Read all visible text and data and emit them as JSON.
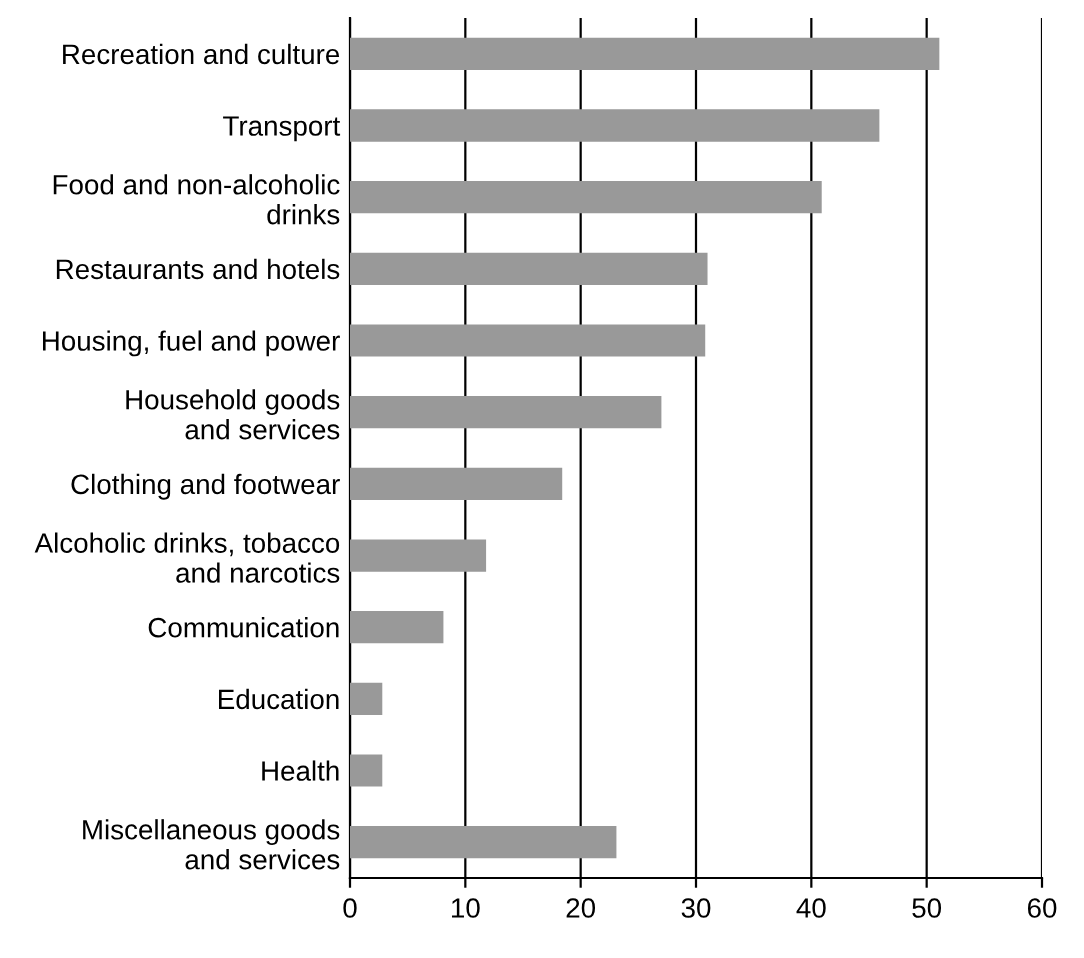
{
  "chart_data": {
    "type": "bar",
    "orientation": "horizontal",
    "categories": [
      "Recreation and culture",
      "Transport",
      "Food and non-alcoholic\ndrinks",
      "Restaurants and hotels",
      "Housing, fuel and power",
      "Household goods\nand services",
      "Clothing and footwear",
      "Alcoholic drinks, tobacco\nand narcotics",
      "Communication",
      "Education",
      "Health",
      "Miscellaneous goods\nand services"
    ],
    "values": [
      51.1,
      45.9,
      40.9,
      31.0,
      30.8,
      27.0,
      18.4,
      11.8,
      8.1,
      2.8,
      2.8,
      23.1
    ],
    "color": "#999999",
    "xlim": [
      0,
      60
    ],
    "xticks": [
      0,
      10,
      20,
      30,
      40,
      50,
      60
    ],
    "grid": "x"
  }
}
